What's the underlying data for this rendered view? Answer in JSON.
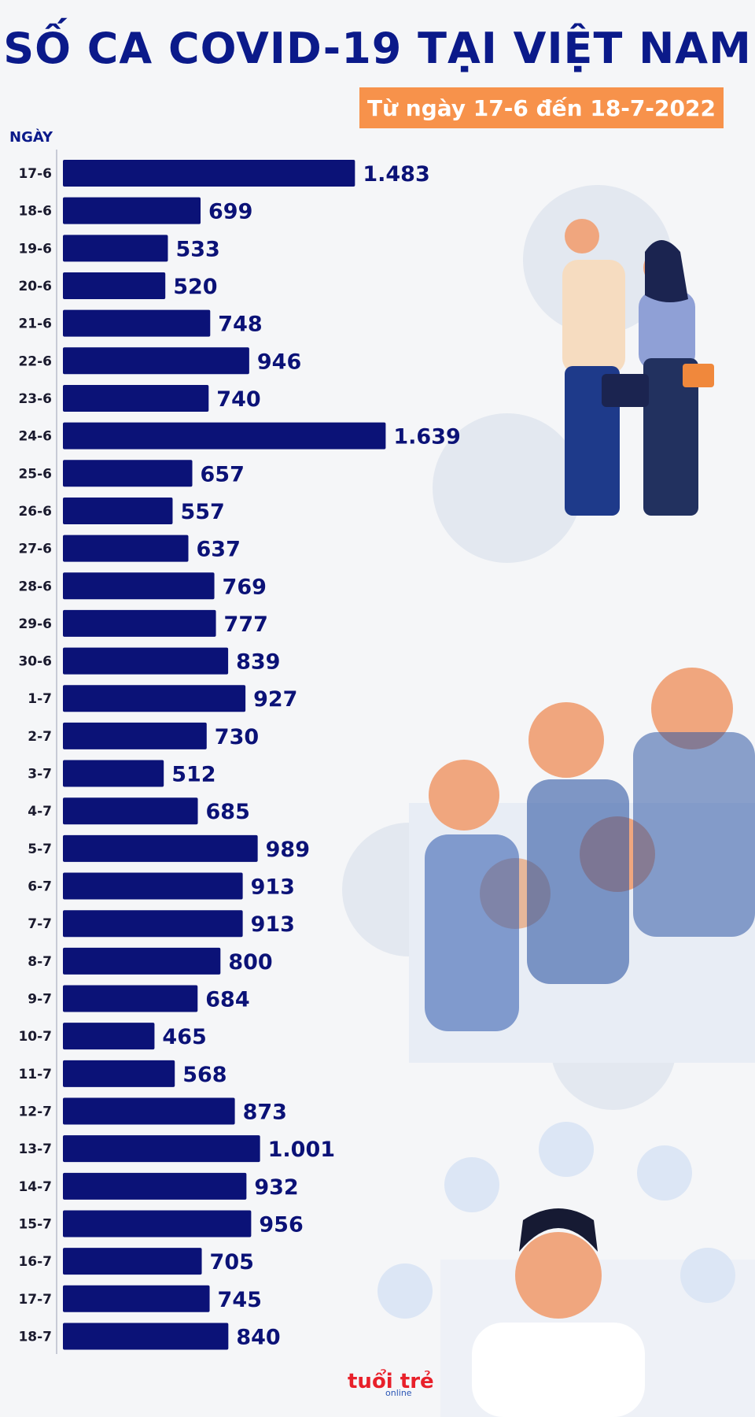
{
  "title": "SỐ CA COVID-19 TẠI VIỆT NAM",
  "subtitle": "Từ ngày 17-6 đến 18-7-2022",
  "logo_text": "tuổi trẻ online",
  "colors": {
    "title": "#0b1a8a",
    "bar": "#0b1277",
    "accent": "#f7924b"
  },
  "chart_data": {
    "type": "bar",
    "orientation": "horizontal",
    "ylabel": "NGÀY",
    "xlabel": "",
    "categories": [
      "17-6",
      "18-6",
      "19-6",
      "20-6",
      "21-6",
      "22-6",
      "23-6",
      "24-6",
      "25-6",
      "26-6",
      "27-6",
      "28-6",
      "29-6",
      "30-6",
      "1-7",
      "2-7",
      "3-7",
      "4-7",
      "5-7",
      "6-7",
      "7-7",
      "8-7",
      "9-7",
      "10-7",
      "11-7",
      "12-7",
      "13-7",
      "14-7",
      "15-7",
      "16-7",
      "17-7",
      "18-7"
    ],
    "values": [
      1483,
      699,
      533,
      520,
      748,
      946,
      740,
      1639,
      657,
      557,
      637,
      769,
      777,
      839,
      927,
      730,
      512,
      685,
      989,
      913,
      913,
      800,
      684,
      465,
      568,
      873,
      1001,
      932,
      956,
      705,
      745,
      840
    ],
    "value_labels": [
      "1.483",
      "699",
      "533",
      "520",
      "748",
      "946",
      "740",
      "1.639",
      "657",
      "557",
      "637",
      "769",
      "777",
      "839",
      "927",
      "730",
      "512",
      "685",
      "989",
      "913",
      "913",
      "800",
      "684",
      "465",
      "568",
      "873",
      "1.001",
      "932",
      "956",
      "705",
      "745",
      "840"
    ],
    "grid": false,
    "legend": "none"
  }
}
